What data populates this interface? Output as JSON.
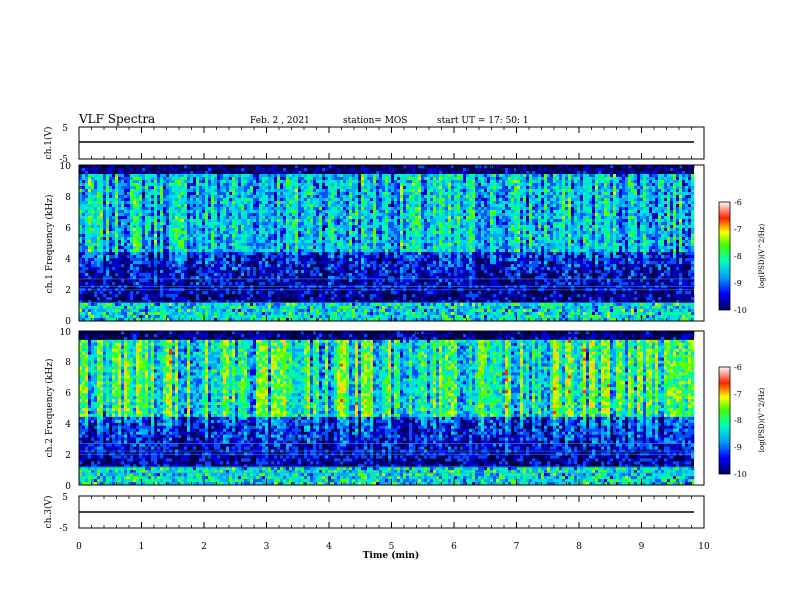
{
  "header": {
    "title": "VLF Spectra",
    "date": "Feb. 2 , 2021",
    "station": "station= MOS",
    "start": "start UT = 17: 50: 1"
  },
  "chart_data": [
    {
      "type": "line",
      "panel": "ch1-waveform",
      "ylabel": "ch.1(V)",
      "ylim": [
        -5,
        5
      ],
      "yticks": [
        "5",
        "-5"
      ],
      "series": [
        {
          "x": [
            0,
            9.85
          ],
          "values": [
            0,
            0
          ]
        }
      ]
    },
    {
      "type": "heatmap",
      "panel": "ch1-spectrogram",
      "ylabel": "ch.1 Frequency (kHz)",
      "ylim": [
        0,
        10
      ],
      "yticks": [
        "0",
        "2",
        "4",
        "6",
        "8",
        "10"
      ],
      "xlim": [
        0,
        10
      ],
      "data_extent_x": [
        0,
        9.85
      ],
      "colorbar": {
        "label": "log(PSD)(V^2/Hz)",
        "ticks": [
          "-6",
          "-7",
          "-8",
          "-9",
          "-10"
        ],
        "range": [
          -10,
          -6
        ]
      }
    },
    {
      "type": "heatmap",
      "panel": "ch2-spectrogram",
      "ylabel": "ch.2 Frequency (kHz)",
      "ylim": [
        0,
        10
      ],
      "yticks": [
        "0",
        "2",
        "4",
        "6",
        "8",
        "10"
      ],
      "xlim": [
        0,
        10
      ],
      "data_extent_x": [
        0,
        9.85
      ],
      "colorbar": {
        "label": "log(PSD)(V^2/Hz)",
        "ticks": [
          "-6",
          "-7",
          "-8",
          "-9",
          "-10"
        ],
        "range": [
          -10,
          -6
        ]
      }
    },
    {
      "type": "line",
      "panel": "ch3-waveform",
      "ylabel": "ch.3(V)",
      "ylim": [
        -5,
        5
      ],
      "yticks": [
        "5",
        "-5"
      ],
      "series": [
        {
          "x": [
            0,
            9.85
          ],
          "values": [
            -0.5,
            -0.5
          ]
        }
      ]
    }
  ],
  "xaxis": {
    "label": "Time (min)",
    "ticks": [
      "0",
      "1",
      "2",
      "3",
      "4",
      "5",
      "6",
      "7",
      "8",
      "9",
      "10"
    ]
  }
}
